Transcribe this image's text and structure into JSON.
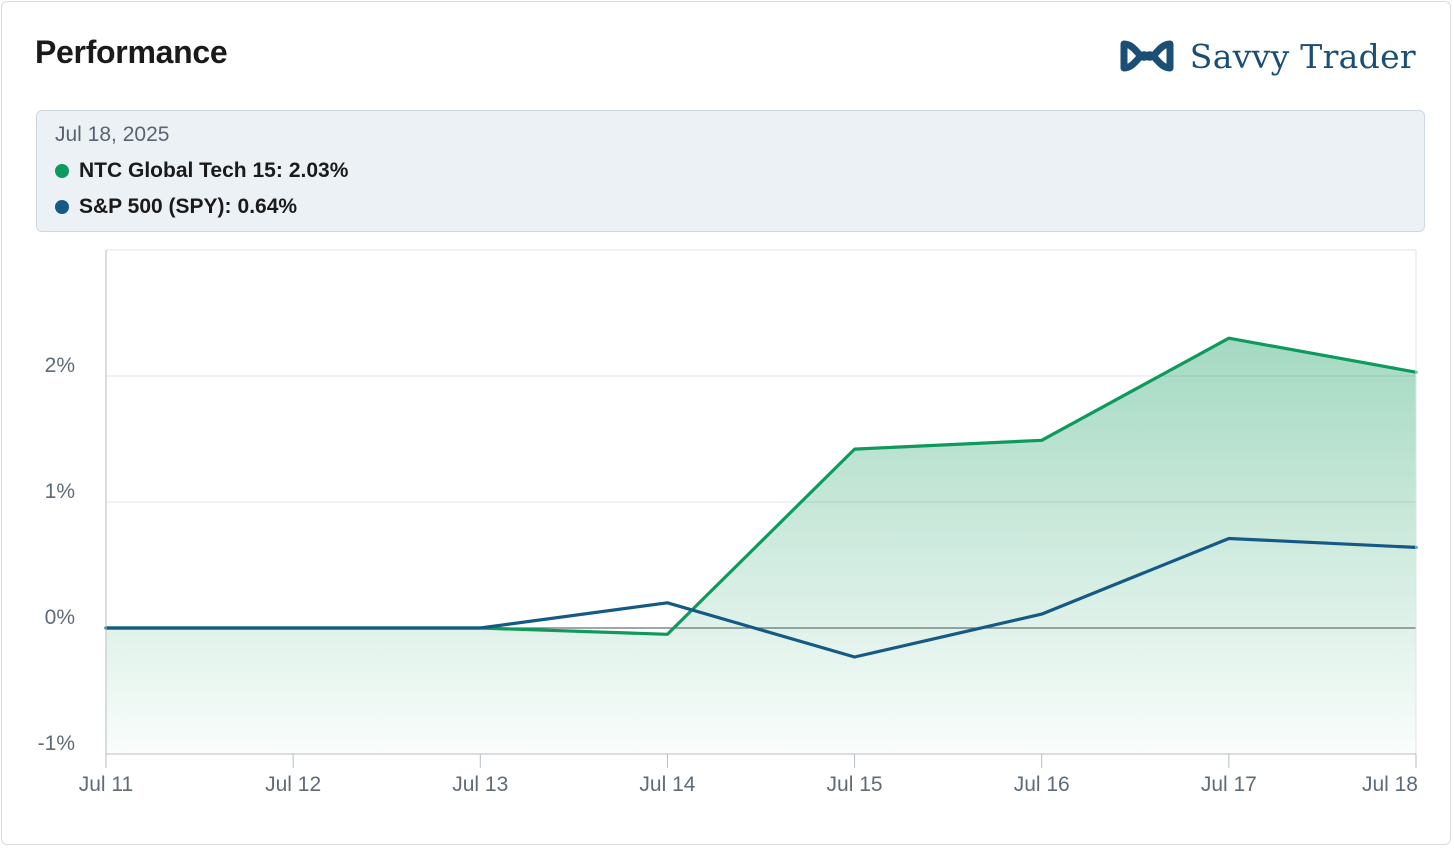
{
  "header": {
    "title": "Performance"
  },
  "brand": {
    "name": "Savvy Trader",
    "logo_icon": "infinity-wave-icon",
    "color": "#1a4e74"
  },
  "tooltip": {
    "date": "Jul 18, 2025",
    "rows": [
      {
        "label": "NTC Global Tech 15",
        "value": "2.03%",
        "color": "#0e9a5c"
      },
      {
        "label": "S&P 500 (SPY)",
        "value": "0.64%",
        "color": "#155a85"
      }
    ]
  },
  "chart_data": {
    "type": "line",
    "categories": [
      "Jul 11",
      "Jul 12",
      "Jul 13",
      "Jul 14",
      "Jul 15",
      "Jul 16",
      "Jul 17",
      "Jul 18"
    ],
    "series": [
      {
        "name": "NTC Global Tech 15",
        "values": [
          0,
          0,
          0,
          -0.05,
          1.42,
          1.49,
          2.3,
          2.03
        ],
        "color": "#0e9a5c",
        "fill": "area-gradient"
      },
      {
        "name": "S&P 500 (SPY)",
        "values": [
          0,
          0,
          0,
          0.2,
          -0.23,
          0.11,
          0.71,
          0.64
        ],
        "color": "#155a85"
      }
    ],
    "ylim": [
      -1,
      3
    ],
    "yticks": [
      -1,
      0,
      1,
      2
    ],
    "ytick_labels": [
      "-1%",
      "0%",
      "1%",
      "2%"
    ],
    "xlabel": "",
    "ylabel": "",
    "grid": true
  }
}
